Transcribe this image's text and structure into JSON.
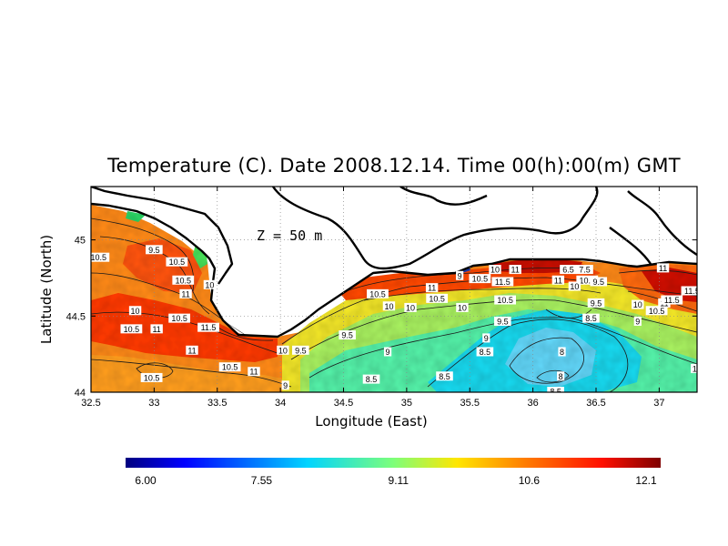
{
  "title": "Temperature (C). Date 2008.12.14. Time 00(h):00(m) GMT",
  "depth_label": "Z  =  50  m",
  "colors": {
    "land": "#ffffff",
    "coastline": "#000000",
    "contour": "#1a1a1a",
    "gridline": "#888888"
  },
  "chart_data": {
    "type": "heatmap",
    "variable": "Temperature (C)",
    "depth_m": 50,
    "xlabel": "Longitude (East)",
    "ylabel": "Latitude (North)",
    "xlim": [
      32.5,
      37.3
    ],
    "ylim": [
      44.0,
      45.35
    ],
    "x_ticks": [
      "32.5",
      "33",
      "33.5",
      "34",
      "34.5",
      "35",
      "35.5",
      "36",
      "36.5",
      "37"
    ],
    "x_tick_values": [
      32.5,
      33,
      33.5,
      34,
      34.5,
      35,
      35.5,
      36,
      36.5,
      37
    ],
    "y_ticks": [
      "44",
      "44.5",
      "45"
    ],
    "y_tick_values": [
      44.0,
      44.5,
      45.0
    ],
    "colorbar": {
      "min": 6.0,
      "max": 12.1,
      "tick_labels": [
        "6.00",
        "7.55",
        "9.11",
        "10.6",
        "12.1"
      ],
      "tick_values": [
        6.0,
        7.55,
        9.11,
        10.6,
        12.1
      ]
    },
    "contour_labels": [
      {
        "text": "10.5",
        "lon": 32.56,
        "lat": 44.88
      },
      {
        "text": "9.5",
        "lon": 33.0,
        "lat": 44.93
      },
      {
        "text": "10.5",
        "lon": 33.18,
        "lat": 44.85
      },
      {
        "text": "10.5",
        "lon": 33.23,
        "lat": 44.73
      },
      {
        "text": "10",
        "lon": 33.44,
        "lat": 44.7
      },
      {
        "text": "11",
        "lon": 33.25,
        "lat": 44.64
      },
      {
        "text": "10",
        "lon": 32.85,
        "lat": 44.53
      },
      {
        "text": "10.5",
        "lon": 33.2,
        "lat": 44.48
      },
      {
        "text": "10.5",
        "lon": 32.82,
        "lat": 44.41
      },
      {
        "text": "11",
        "lon": 33.02,
        "lat": 44.41
      },
      {
        "text": "11.5",
        "lon": 33.43,
        "lat": 44.42
      },
      {
        "text": "11",
        "lon": 33.3,
        "lat": 44.27
      },
      {
        "text": "10.5",
        "lon": 32.98,
        "lat": 44.09
      },
      {
        "text": "10.5",
        "lon": 33.6,
        "lat": 44.16
      },
      {
        "text": "11",
        "lon": 33.79,
        "lat": 44.13
      },
      {
        "text": "10",
        "lon": 34.02,
        "lat": 44.27
      },
      {
        "text": "9.5",
        "lon": 34.16,
        "lat": 44.27
      },
      {
        "text": "9",
        "lon": 34.04,
        "lat": 44.04
      },
      {
        "text": "9.5",
        "lon": 34.53,
        "lat": 44.37
      },
      {
        "text": "10.5",
        "lon": 34.77,
        "lat": 44.64
      },
      {
        "text": "10",
        "lon": 34.86,
        "lat": 44.56
      },
      {
        "text": "10",
        "lon": 35.03,
        "lat": 44.55
      },
      {
        "text": "11",
        "lon": 35.2,
        "lat": 44.68
      },
      {
        "text": "10.5",
        "lon": 35.24,
        "lat": 44.61
      },
      {
        "text": "10",
        "lon": 35.44,
        "lat": 44.55
      },
      {
        "text": "9",
        "lon": 35.42,
        "lat": 44.76
      },
      {
        "text": "10.5",
        "lon": 35.58,
        "lat": 44.74
      },
      {
        "text": "11.5",
        "lon": 35.76,
        "lat": 44.72
      },
      {
        "text": "10",
        "lon": 35.7,
        "lat": 44.8
      },
      {
        "text": "11",
        "lon": 35.86,
        "lat": 44.8
      },
      {
        "text": "10.5",
        "lon": 35.78,
        "lat": 44.6
      },
      {
        "text": "9.5",
        "lon": 35.76,
        "lat": 44.46
      },
      {
        "text": "9",
        "lon": 34.85,
        "lat": 44.26
      },
      {
        "text": "9",
        "lon": 35.63,
        "lat": 44.35
      },
      {
        "text": "8.5",
        "lon": 35.62,
        "lat": 44.26
      },
      {
        "text": "8.5",
        "lon": 34.72,
        "lat": 44.08
      },
      {
        "text": "8.5",
        "lon": 35.3,
        "lat": 44.1
      },
      {
        "text": "8",
        "lon": 36.23,
        "lat": 44.26
      },
      {
        "text": "8",
        "lon": 36.22,
        "lat": 44.1
      },
      {
        "text": "8.5",
        "lon": 36.18,
        "lat": 44.0
      },
      {
        "text": "6.5",
        "lon": 36.28,
        "lat": 44.8
      },
      {
        "text": "7.5",
        "lon": 36.41,
        "lat": 44.8
      },
      {
        "text": "11",
        "lon": 36.2,
        "lat": 44.73
      },
      {
        "text": "10.5",
        "lon": 36.43,
        "lat": 44.73
      },
      {
        "text": "10",
        "lon": 36.33,
        "lat": 44.69
      },
      {
        "text": "9.5",
        "lon": 36.52,
        "lat": 44.72
      },
      {
        "text": "9.5",
        "lon": 36.5,
        "lat": 44.58
      },
      {
        "text": "8.5",
        "lon": 36.46,
        "lat": 44.48
      },
      {
        "text": "9",
        "lon": 36.83,
        "lat": 44.46
      },
      {
        "text": "10",
        "lon": 36.83,
        "lat": 44.57
      },
      {
        "text": "10.5",
        "lon": 36.98,
        "lat": 44.53
      },
      {
        "text": "11",
        "lon": 37.04,
        "lat": 44.58
      },
      {
        "text": "11.5",
        "lon": 37.1,
        "lat": 44.6
      },
      {
        "text": "11.5",
        "lon": 37.26,
        "lat": 44.66
      },
      {
        "text": "11",
        "lon": 37.03,
        "lat": 44.81
      },
      {
        "text": "1",
        "lon": 37.28,
        "lat": 44.15
      }
    ]
  }
}
